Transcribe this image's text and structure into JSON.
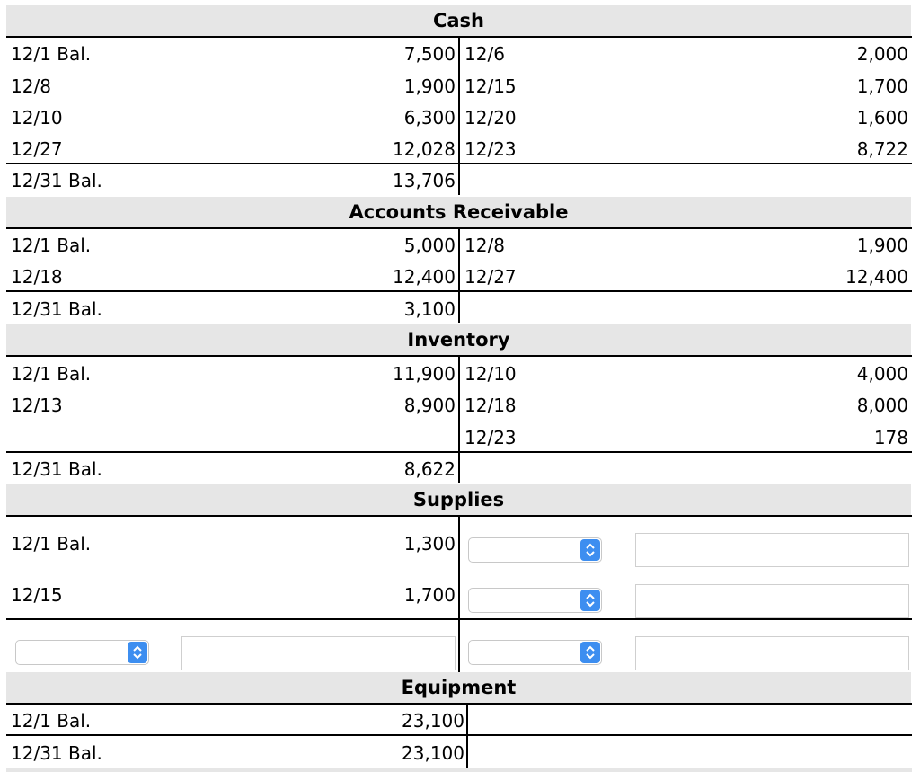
{
  "cash": {
    "title": "Cash",
    "debits": [
      {
        "label": "12/1 Bal.",
        "amount": "7,500"
      },
      {
        "label": "12/8",
        "amount": "1,900"
      },
      {
        "label": "12/10",
        "amount": "6,300"
      },
      {
        "label": "12/27",
        "amount": "12,028"
      }
    ],
    "credits": [
      {
        "label": "12/6",
        "amount": "2,000"
      },
      {
        "label": "12/15",
        "amount": "1,700"
      },
      {
        "label": "12/20",
        "amount": "1,600"
      },
      {
        "label": "12/23",
        "amount": "8,722"
      }
    ],
    "balance": {
      "label": "12/31 Bal.",
      "amount": "13,706"
    }
  },
  "ar": {
    "title": "Accounts Receivable",
    "debits": [
      {
        "label": "12/1 Bal.",
        "amount": "5,000"
      },
      {
        "label": "12/18",
        "amount": "12,400"
      }
    ],
    "credits": [
      {
        "label": "12/8",
        "amount": "1,900"
      },
      {
        "label": "12/27",
        "amount": "12,400"
      }
    ],
    "balance": {
      "label": "12/31 Bal.",
      "amount": "3,100"
    }
  },
  "inventory": {
    "title": "Inventory",
    "debits": [
      {
        "label": "12/1 Bal.",
        "amount": "11,900"
      },
      {
        "label": "12/13",
        "amount": "8,900"
      }
    ],
    "credits": [
      {
        "label": "12/10",
        "amount": "4,000"
      },
      {
        "label": "12/18",
        "amount": "8,000"
      },
      {
        "label": "12/23",
        "amount": "178"
      }
    ],
    "balance": {
      "label": "12/31 Bal.",
      "amount": "8,622"
    }
  },
  "supplies": {
    "title": "Supplies",
    "debits": [
      {
        "label": "12/1 Bal.",
        "amount": "1,300"
      },
      {
        "label": "12/15",
        "amount": "1,700"
      }
    ],
    "credit_selects": [
      "",
      ""
    ],
    "credit_inputs": [
      "",
      ""
    ],
    "balance_debit_select": "",
    "balance_debit_input": "",
    "balance_credit_select": "",
    "balance_credit_input": ""
  },
  "equipment": {
    "title": "Equipment",
    "debits": [
      {
        "label": "12/1 Bal.",
        "amount": "23,100"
      }
    ],
    "balance": {
      "label": "12/31 Bal.",
      "amount": "23,100"
    }
  },
  "colors": {
    "header_bg": "#e6e6e6",
    "select_button": "#3d8ef0"
  },
  "icons": {
    "select_arrow": "chevron-up-down-icon"
  }
}
